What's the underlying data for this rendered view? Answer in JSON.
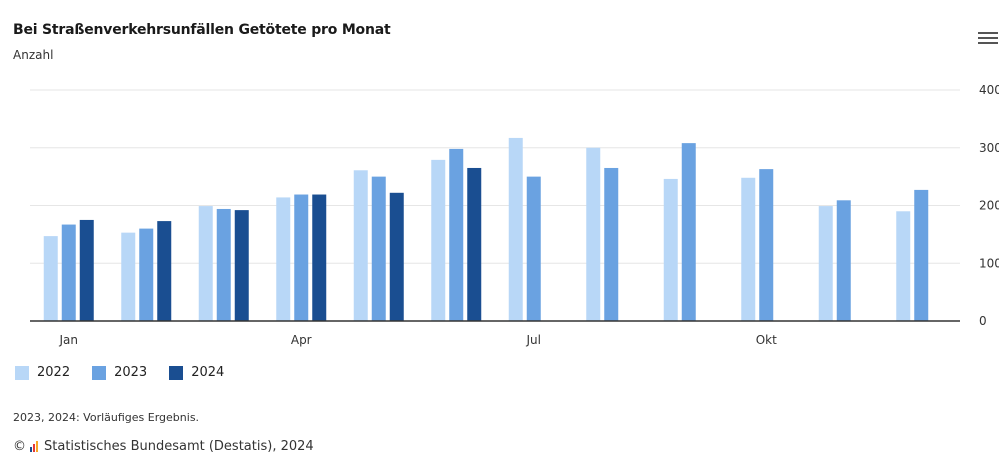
{
  "header": {
    "title": "Bei Straßenverkehrsunfällen Getötete pro Monat",
    "subtitle": "Anzahl",
    "menu_icon": "hamburger-menu-icon"
  },
  "colors": {
    "2022": "#b8d7f7",
    "2023": "#6aa2e1",
    "2024": "#1a4e91",
    "grid": "#e6e6e6",
    "axis": "#333333"
  },
  "chart_data": {
    "type": "bar",
    "title": "Bei Straßenverkehrsunfällen Getötete pro Monat",
    "ylabel": "Anzahl",
    "categories": [
      "Jan",
      "Feb",
      "Mär",
      "Apr",
      "Mai",
      "Jun",
      "Jul",
      "Aug",
      "Sep",
      "Okt",
      "Nov",
      "Dez"
    ],
    "x_tick_labels": [
      "Jan",
      "",
      "",
      "Apr",
      "",
      "",
      "Jul",
      "",
      "",
      "Okt",
      "",
      ""
    ],
    "y_ticks": [
      "0",
      "100",
      "200",
      "300",
      "400"
    ],
    "ylim": [
      0,
      400
    ],
    "grid": true,
    "legend_position": "bottom-left",
    "series": [
      {
        "name": "2022",
        "values": [
          147,
          153,
          199,
          214,
          261,
          279,
          317,
          300,
          246,
          248,
          199,
          190
        ]
      },
      {
        "name": "2023",
        "values": [
          167,
          160,
          194,
          219,
          250,
          298,
          250,
          265,
          308,
          263,
          209,
          227
        ]
      },
      {
        "name": "2024",
        "values": [
          175,
          173,
          192,
          219,
          222,
          265,
          null,
          null,
          null,
          null,
          null,
          null
        ]
      }
    ]
  },
  "legend": {
    "items": [
      {
        "label": "2022"
      },
      {
        "label": "2023"
      },
      {
        "label": "2024"
      }
    ]
  },
  "footer": {
    "note": "2023, 2024: Vorläufiges Ergebnis.",
    "copyright": "©",
    "source": "Statistisches Bundesamt (Destatis), 2024"
  }
}
